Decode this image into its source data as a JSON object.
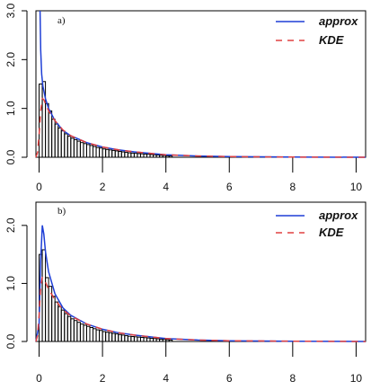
{
  "chart_data": [
    {
      "type": "bar",
      "panel_label": "a)",
      "xlim": [
        -0.1,
        10.3
      ],
      "ylim": [
        0,
        3.0
      ],
      "x_ticks": [
        0,
        2,
        4,
        6,
        8,
        10
      ],
      "y_ticks": [
        0.0,
        1.0,
        2.0,
        3.0
      ],
      "x_tick_labels": [
        "0",
        "2",
        "4",
        "6",
        "8",
        "10"
      ],
      "y_tick_labels": [
        "0.0",
        "1.0",
        "2.0",
        "3.0"
      ],
      "legend": {
        "position": "top-right",
        "entries": [
          "approx",
          "KDE"
        ]
      },
      "histogram": {
        "bin_width": 0.1,
        "start": 0,
        "heights": [
          1.5,
          1.55,
          1.1,
          0.95,
          0.78,
          0.68,
          0.6,
          0.54,
          0.48,
          0.43,
          0.39,
          0.36,
          0.33,
          0.3,
          0.28,
          0.26,
          0.24,
          0.22,
          0.2,
          0.19,
          0.17,
          0.16,
          0.15,
          0.14,
          0.13,
          0.12,
          0.11,
          0.1,
          0.09,
          0.085,
          0.08,
          0.075,
          0.07,
          0.065,
          0.06,
          0.055,
          0.05,
          0.045,
          0.04,
          0.035,
          0.03,
          0.025
        ]
      },
      "series": [
        {
          "name": "approx",
          "color": "#1f3fd6",
          "style": "solid",
          "x": [
            0.03,
            0.05,
            0.08,
            0.12,
            0.2,
            0.3,
            0.5,
            0.75,
            1.0,
            1.5,
            2.0,
            2.5,
            3.0,
            4.0,
            5.0,
            6.0,
            8.0,
            10.3
          ],
          "y": [
            3.0,
            2.2,
            1.7,
            1.45,
            1.2,
            1.0,
            0.75,
            0.55,
            0.44,
            0.3,
            0.21,
            0.15,
            0.11,
            0.05,
            0.025,
            0.012,
            0.004,
            0.0
          ]
        },
        {
          "name": "KDE",
          "color": "#e04040",
          "style": "dashed",
          "x": [
            -0.1,
            -0.05,
            0.0,
            0.05,
            0.1,
            0.15,
            0.2,
            0.3,
            0.5,
            0.75,
            1.0,
            1.5,
            2.0,
            2.5,
            3.0,
            4.0,
            5.0,
            6.0,
            8.0,
            10.3
          ],
          "y": [
            0.0,
            0.1,
            0.45,
            0.95,
            1.2,
            1.18,
            1.1,
            0.95,
            0.75,
            0.56,
            0.44,
            0.3,
            0.21,
            0.15,
            0.11,
            0.05,
            0.025,
            0.012,
            0.004,
            0.0
          ]
        }
      ]
    },
    {
      "type": "bar",
      "panel_label": "b)",
      "xlim": [
        -0.1,
        10.3
      ],
      "ylim": [
        0,
        2.4
      ],
      "x_ticks": [
        0,
        2,
        4,
        6,
        8,
        10
      ],
      "y_ticks": [
        0.0,
        1.0,
        2.0
      ],
      "x_tick_labels": [
        "0",
        "2",
        "4",
        "6",
        "8",
        "10"
      ],
      "y_tick_labels": [
        "0.0",
        "1.0",
        "2.0"
      ],
      "legend": {
        "position": "top-right",
        "entries": [
          "approx",
          "KDE"
        ]
      },
      "histogram": {
        "bin_width": 0.1,
        "start": 0,
        "heights": [
          1.5,
          1.58,
          1.1,
          0.95,
          0.78,
          0.68,
          0.6,
          0.54,
          0.48,
          0.43,
          0.39,
          0.36,
          0.33,
          0.3,
          0.28,
          0.26,
          0.24,
          0.22,
          0.2,
          0.19,
          0.17,
          0.16,
          0.15,
          0.14,
          0.13,
          0.12,
          0.11,
          0.1,
          0.09,
          0.085,
          0.08,
          0.075,
          0.07,
          0.065,
          0.06,
          0.055,
          0.05,
          0.045,
          0.04,
          0.035,
          0.03,
          0.025
        ]
      },
      "series": [
        {
          "name": "approx",
          "color": "#1f3fd6",
          "style": "solid",
          "x": [
            -0.1,
            0.0,
            0.05,
            0.1,
            0.15,
            0.2,
            0.3,
            0.5,
            0.75,
            1.0,
            1.5,
            2.0,
            2.5,
            3.0,
            4.0,
            5.0,
            6.0,
            8.0,
            10.3
          ],
          "y": [
            0.0,
            0.3,
            1.4,
            2.0,
            1.85,
            1.55,
            1.2,
            0.82,
            0.58,
            0.45,
            0.3,
            0.21,
            0.15,
            0.11,
            0.05,
            0.025,
            0.012,
            0.004,
            0.0
          ]
        },
        {
          "name": "KDE",
          "color": "#e04040",
          "style": "dashed",
          "x": [
            -0.1,
            -0.05,
            0.0,
            0.05,
            0.1,
            0.15,
            0.2,
            0.3,
            0.5,
            0.75,
            1.0,
            1.5,
            2.0,
            2.5,
            3.0,
            4.0,
            5.0,
            6.0,
            8.0,
            10.3
          ],
          "y": [
            0.0,
            0.1,
            0.45,
            0.95,
            1.1,
            1.08,
            1.02,
            0.9,
            0.72,
            0.55,
            0.44,
            0.3,
            0.21,
            0.15,
            0.11,
            0.05,
            0.025,
            0.012,
            0.004,
            0.0
          ]
        }
      ]
    }
  ]
}
